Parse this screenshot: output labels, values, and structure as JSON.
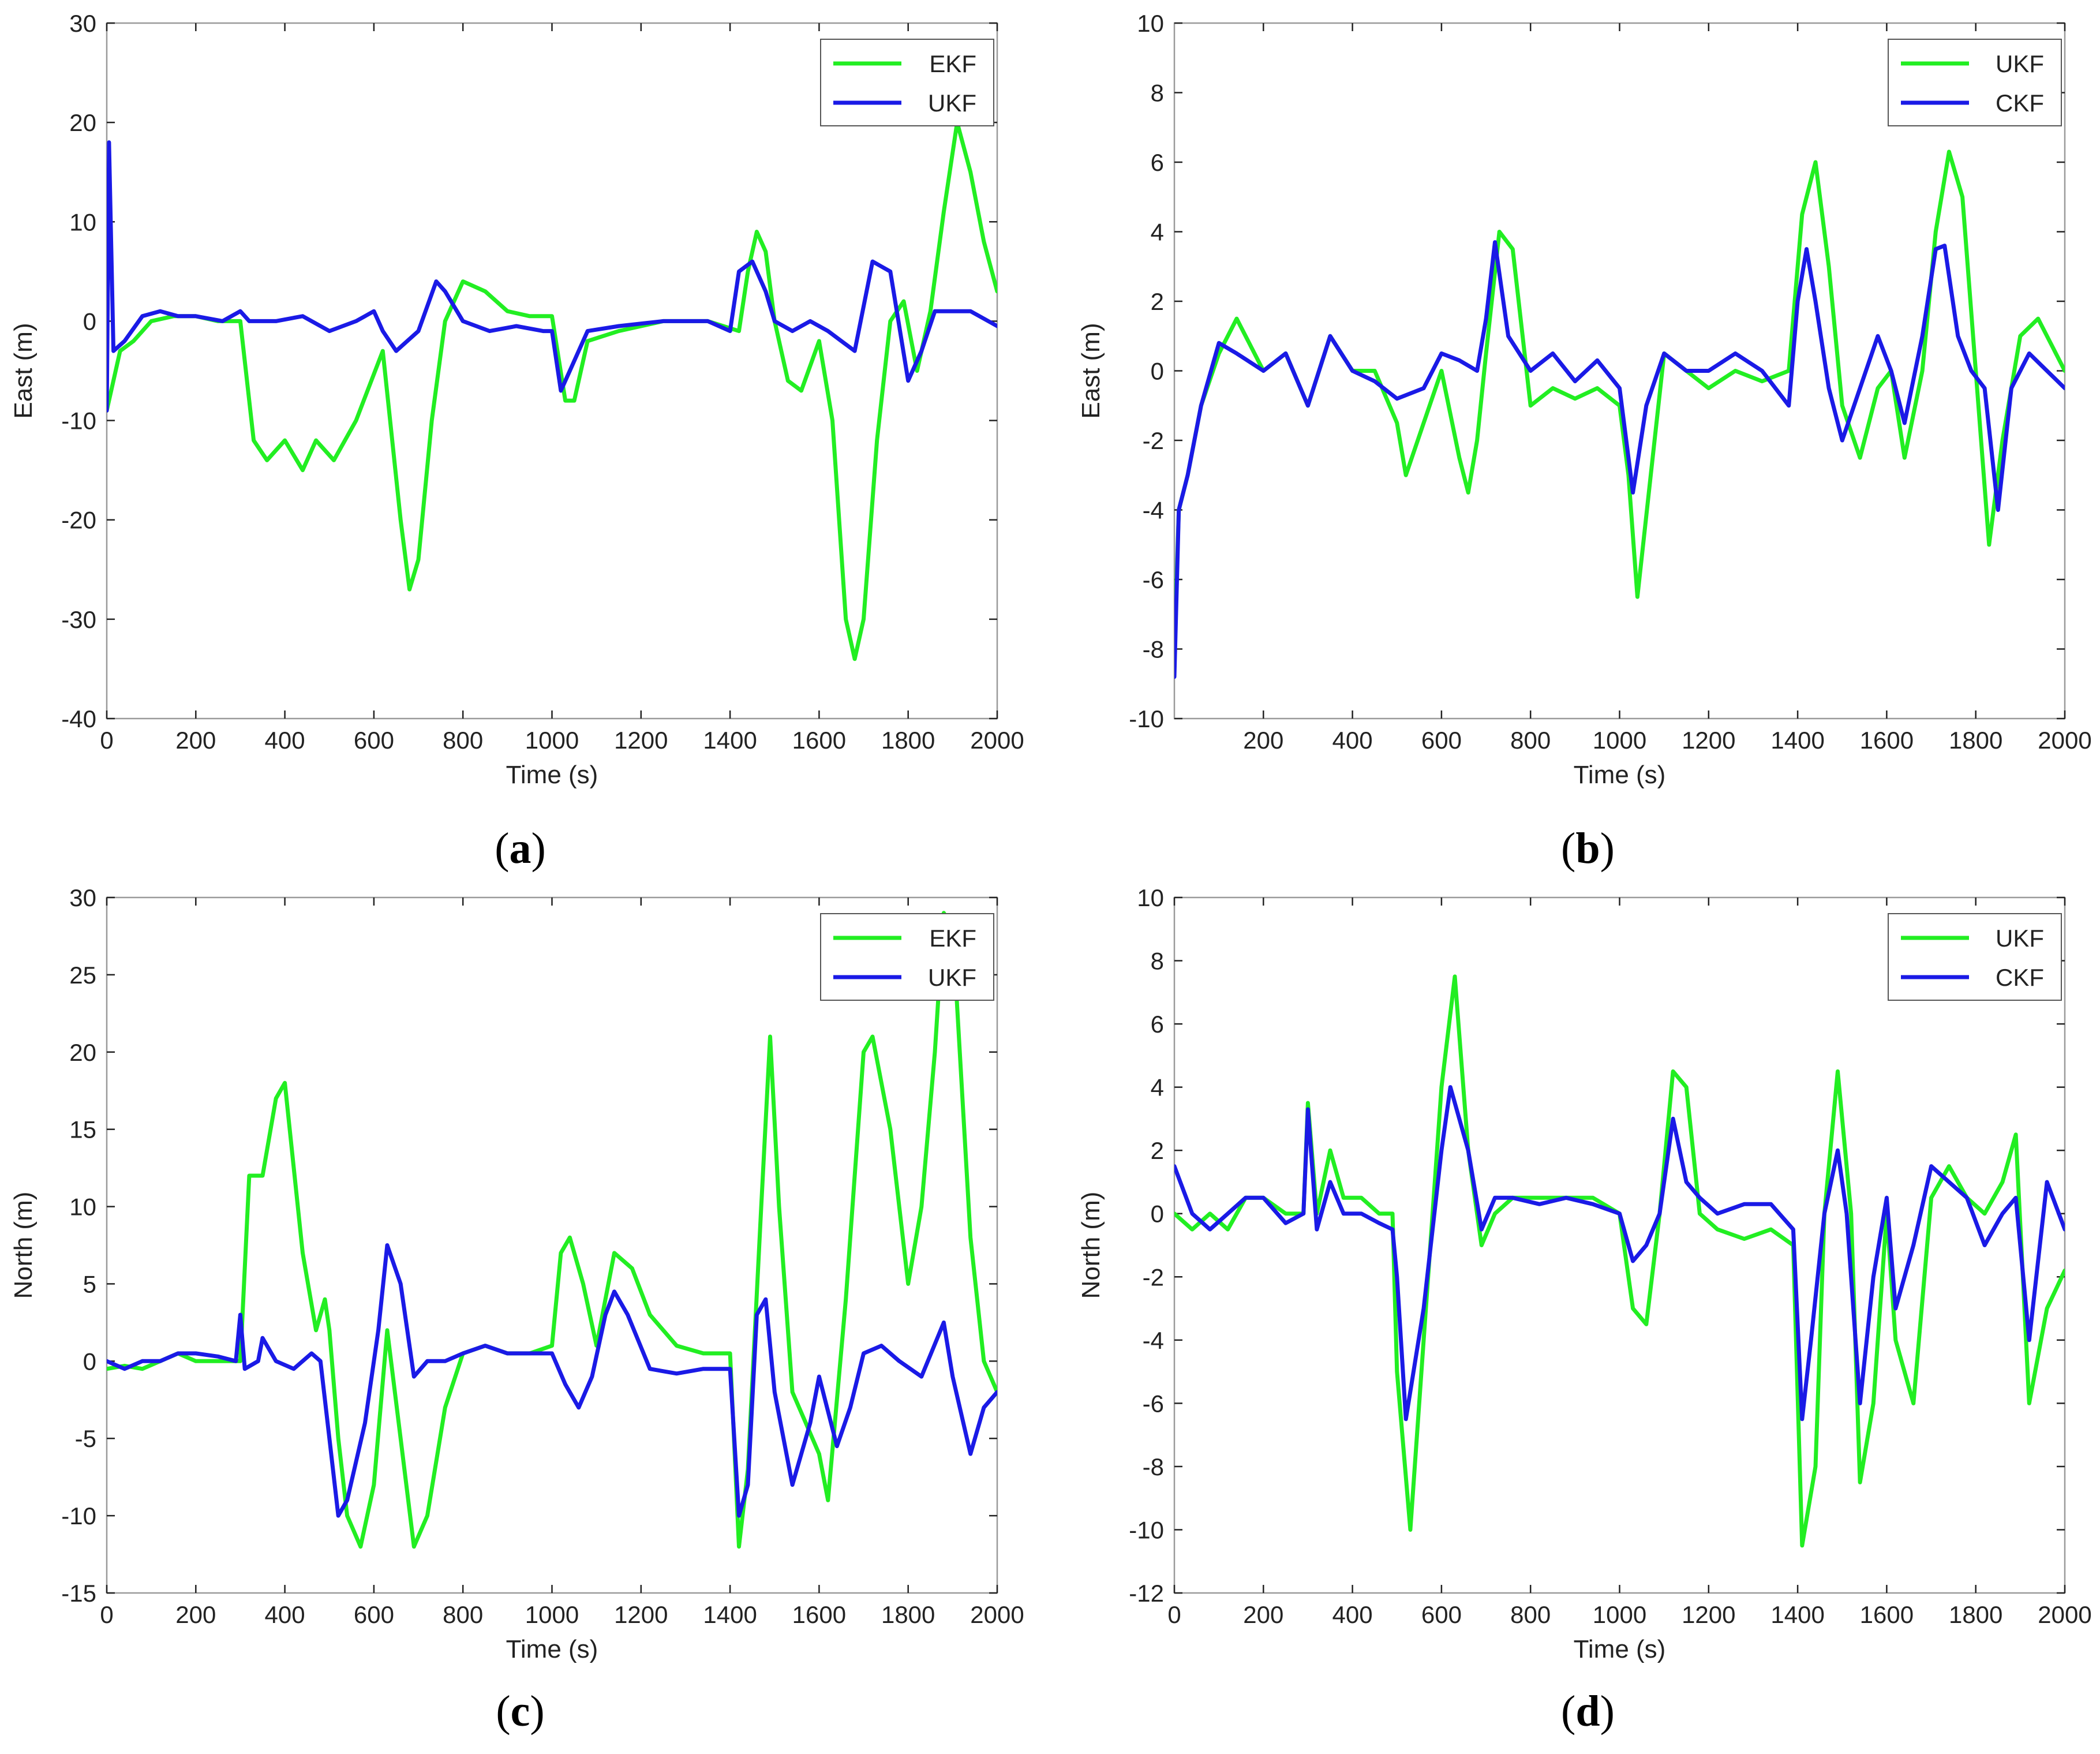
{
  "colors": {
    "green": "#22ee22",
    "blue": "#1a1ae6"
  },
  "chart_data": [
    {
      "id": "a",
      "type": "line",
      "caption": "a",
      "xlabel": "Time (s)",
      "ylabel": "East (m)",
      "xlim": [
        0,
        2000
      ],
      "ylim": [
        -40,
        30
      ],
      "xticks": [
        0,
        200,
        400,
        600,
        800,
        1000,
        1200,
        1400,
        1600,
        1800,
        2000
      ],
      "yticks": [
        -40,
        -30,
        -20,
        -10,
        0,
        10,
        20,
        30
      ],
      "series": [
        {
          "name": "EKF",
          "color": "green",
          "x": [
            0,
            10,
            30,
            60,
            100,
            150,
            200,
            250,
            300,
            330,
            360,
            400,
            440,
            470,
            510,
            560,
            620,
            660,
            680,
            700,
            730,
            760,
            800,
            850,
            900,
            950,
            1000,
            1030,
            1050,
            1080,
            1150,
            1250,
            1350,
            1420,
            1440,
            1460,
            1480,
            1500,
            1530,
            1560,
            1600,
            1630,
            1660,
            1680,
            1700,
            1730,
            1760,
            1790,
            1820,
            1850,
            1880,
            1910,
            1940,
            1970,
            2000
          ],
          "y": [
            -9,
            -7,
            -3,
            -2,
            0,
            0.5,
            0.5,
            0,
            0,
            -12,
            -14,
            -12,
            -15,
            -12,
            -14,
            -10,
            -3,
            -20,
            -27,
            -24,
            -10,
            0,
            4,
            3,
            1,
            0.5,
            0.5,
            -8,
            -8,
            -2,
            -1,
            0,
            0,
            -1,
            5,
            9,
            7,
            0,
            -6,
            -7,
            -2,
            -10,
            -30,
            -34,
            -30,
            -12,
            0,
            2,
            -5,
            1,
            11,
            20,
            15,
            8,
            3
          ]
        },
        {
          "name": "UKF",
          "color": "blue",
          "x": [
            0,
            5,
            15,
            40,
            80,
            120,
            160,
            200,
            260,
            300,
            320,
            380,
            440,
            500,
            560,
            600,
            620,
            650,
            700,
            740,
            760,
            800,
            860,
            920,
            980,
            1000,
            1020,
            1040,
            1080,
            1150,
            1250,
            1350,
            1400,
            1420,
            1450,
            1480,
            1500,
            1540,
            1580,
            1620,
            1650,
            1680,
            1720,
            1760,
            1800,
            1830,
            1860,
            1900,
            1940,
            2000
          ],
          "y": [
            -9,
            18,
            -3,
            -2,
            0.5,
            1,
            0.5,
            0.5,
            0,
            1,
            0,
            0,
            0.5,
            -1,
            0,
            1,
            -1,
            -3,
            -1,
            4,
            3,
            0,
            -1,
            -0.5,
            -1,
            -1,
            -7,
            -5,
            -1,
            -0.5,
            0,
            0,
            -1,
            5,
            6,
            3,
            0,
            -1,
            0,
            -1,
            -2,
            -3,
            6,
            5,
            -6,
            -3,
            1,
            1,
            1,
            -0.5
          ]
        }
      ],
      "legend": [
        "EKF",
        "UKF"
      ]
    },
    {
      "id": "b",
      "type": "line",
      "caption": "b",
      "xlabel": "Time (s)",
      "ylabel": "East (m)",
      "xlim": [
        0,
        2000
      ],
      "ylim": [
        -10,
        10
      ],
      "xticks": [
        200,
        400,
        600,
        800,
        1000,
        1200,
        1400,
        1600,
        1800,
        2000
      ],
      "yticks": [
        -10,
        -8,
        -6,
        -4,
        -2,
        0,
        2,
        4,
        6,
        8,
        10
      ],
      "series": [
        {
          "name": "UKF",
          "color": "green",
          "x": [
            0,
            10,
            30,
            60,
            100,
            140,
            200,
            250,
            300,
            350,
            400,
            450,
            500,
            520,
            560,
            600,
            640,
            660,
            680,
            700,
            730,
            760,
            800,
            850,
            900,
            950,
            1000,
            1020,
            1040,
            1070,
            1100,
            1150,
            1200,
            1260,
            1320,
            1380,
            1410,
            1440,
            1470,
            1500,
            1540,
            1580,
            1610,
            1640,
            1680,
            1710,
            1740,
            1770,
            1800,
            1830,
            1860,
            1900,
            1940,
            2000
          ],
          "y": [
            -8,
            -4,
            -3,
            -1,
            0.5,
            1.5,
            0,
            0.5,
            -1,
            1,
            0,
            0,
            -1.5,
            -3,
            -1.5,
            0,
            -2.5,
            -3.5,
            -2,
            0.5,
            4,
            3.5,
            -1,
            -0.5,
            -0.8,
            -0.5,
            -1,
            -3,
            -6.5,
            -3,
            0.5,
            0,
            -0.5,
            0,
            -0.3,
            0,
            4.5,
            6,
            3,
            -1,
            -2.5,
            -0.5,
            0,
            -2.5,
            0,
            4,
            6.3,
            5,
            0,
            -5,
            -2,
            1,
            1.5,
            0
          ]
        },
        {
          "name": "CKF",
          "color": "blue",
          "x": [
            0,
            10,
            30,
            60,
            100,
            140,
            200,
            250,
            300,
            350,
            400,
            450,
            500,
            560,
            600,
            640,
            680,
            700,
            720,
            750,
            800,
            850,
            900,
            950,
            1000,
            1030,
            1060,
            1100,
            1150,
            1200,
            1260,
            1320,
            1380,
            1400,
            1420,
            1440,
            1470,
            1500,
            1540,
            1580,
            1610,
            1640,
            1680,
            1710,
            1730,
            1760,
            1790,
            1820,
            1850,
            1880,
            1920,
            1960,
            2000
          ],
          "y": [
            -8.8,
            -4,
            -3,
            -1,
            0.8,
            0.5,
            0,
            0.5,
            -1,
            1,
            0,
            -0.3,
            -0.8,
            -0.5,
            0.5,
            0.3,
            0,
            1.5,
            3.7,
            1,
            0,
            0.5,
            -0.3,
            0.3,
            -0.5,
            -3.5,
            -1,
            0.5,
            0,
            0,
            0.5,
            0,
            -1,
            2,
            3.5,
            2,
            -0.5,
            -2,
            -0.5,
            1,
            0,
            -1.5,
            1,
            3.5,
            3.6,
            1,
            0,
            -0.5,
            -4,
            -0.5,
            0.5,
            0,
            -0.5
          ]
        }
      ],
      "legend": [
        "UKF",
        "CKF"
      ]
    },
    {
      "id": "c",
      "type": "line",
      "caption": "c",
      "xlabel": "Time (s)",
      "ylabel": "North (m)",
      "xlim": [
        0,
        2000
      ],
      "ylim": [
        -15,
        30
      ],
      "xticks": [
        0,
        200,
        400,
        600,
        800,
        1000,
        1200,
        1400,
        1600,
        1800,
        2000
      ],
      "yticks": [
        -15,
        -10,
        -5,
        0,
        5,
        10,
        15,
        20,
        25,
        30
      ],
      "series": [
        {
          "name": "EKF",
          "color": "green",
          "x": [
            0,
            40,
            80,
            120,
            160,
            200,
            250,
            300,
            320,
            350,
            380,
            400,
            440,
            470,
            490,
            500,
            520,
            540,
            570,
            600,
            630,
            660,
            690,
            720,
            760,
            800,
            850,
            900,
            950,
            1000,
            1020,
            1040,
            1070,
            1100,
            1140,
            1180,
            1220,
            1280,
            1340,
            1400,
            1420,
            1440,
            1470,
            1490,
            1510,
            1540,
            1570,
            1600,
            1620,
            1660,
            1700,
            1720,
            1760,
            1800,
            1830,
            1860,
            1880,
            1900,
            1940,
            1970,
            2000
          ],
          "y": [
            -0.5,
            -0.3,
            -0.5,
            0,
            0.5,
            0,
            0,
            0,
            12,
            12,
            17,
            18,
            7,
            2,
            4,
            2,
            -5,
            -10,
            -12,
            -8,
            2,
            -5,
            -12,
            -10,
            -3,
            0.5,
            1,
            0.5,
            0.5,
            1,
            7,
            8,
            5,
            1,
            7,
            6,
            3,
            1,
            0.5,
            0.5,
            -12,
            -7,
            10,
            21,
            10,
            -2,
            -4,
            -6,
            -9,
            4,
            20,
            21,
            15,
            5,
            10,
            20,
            29,
            28,
            8,
            0,
            -2
          ]
        },
        {
          "name": "UKF",
          "color": "blue",
          "x": [
            0,
            40,
            80,
            120,
            160,
            200,
            250,
            290,
            300,
            310,
            340,
            350,
            380,
            420,
            460,
            480,
            500,
            520,
            540,
            580,
            610,
            630,
            660,
            690,
            720,
            760,
            800,
            850,
            900,
            950,
            1000,
            1030,
            1060,
            1090,
            1120,
            1140,
            1170,
            1220,
            1280,
            1340,
            1400,
            1420,
            1440,
            1460,
            1480,
            1500,
            1540,
            1580,
            1600,
            1640,
            1670,
            1700,
            1740,
            1780,
            1830,
            1880,
            1900,
            1940,
            1970,
            2000
          ],
          "y": [
            0,
            -0.5,
            0,
            0,
            0.5,
            0.5,
            0.3,
            0,
            3,
            -0.5,
            0,
            1.5,
            0,
            -0.5,
            0.5,
            0,
            -5,
            -10,
            -9,
            -4,
            2,
            7.5,
            5,
            -1,
            0,
            0,
            0.5,
            1,
            0.5,
            0.5,
            0.5,
            -1.5,
            -3,
            -1,
            3,
            4.5,
            3,
            -0.5,
            -0.8,
            -0.5,
            -0.5,
            -10,
            -8,
            3,
            4,
            -2,
            -8,
            -4,
            -1,
            -5.5,
            -3,
            0.5,
            1,
            0,
            -1,
            2.5,
            -1,
            -6,
            -3,
            -2
          ]
        }
      ],
      "legend": [
        "EKF",
        "UKF"
      ]
    },
    {
      "id": "d",
      "type": "line",
      "caption": "d",
      "xlabel": "Time (s)",
      "ylabel": "North (m)",
      "xlim": [
        0,
        2000
      ],
      "ylim": [
        -12,
        10
      ],
      "xticks": [
        0,
        200,
        400,
        600,
        800,
        1000,
        1200,
        1400,
        1600,
        1800,
        2000
      ],
      "yticks": [
        -12,
        -10,
        -8,
        -6,
        -4,
        -2,
        0,
        2,
        4,
        6,
        8,
        10
      ],
      "series": [
        {
          "name": "UKF",
          "color": "green",
          "x": [
            0,
            40,
            80,
            120,
            160,
            200,
            250,
            290,
            300,
            320,
            350,
            380,
            420,
            460,
            490,
            500,
            530,
            560,
            600,
            630,
            660,
            690,
            720,
            760,
            820,
            880,
            940,
            1000,
            1030,
            1060,
            1090,
            1120,
            1150,
            1180,
            1220,
            1280,
            1340,
            1390,
            1410,
            1440,
            1460,
            1490,
            1520,
            1540,
            1570,
            1600,
            1620,
            1660,
            1700,
            1740,
            1780,
            1820,
            1860,
            1890,
            1920,
            1960,
            2000
          ],
          "y": [
            0,
            -0.5,
            0,
            -0.5,
            0.5,
            0.5,
            0,
            0,
            3.5,
            0,
            2,
            0.5,
            0.5,
            0,
            0,
            -5,
            -10,
            -4,
            4,
            7.5,
            2,
            -1,
            0,
            0.5,
            0.5,
            0.5,
            0.5,
            0,
            -3,
            -3.5,
            0,
            4.5,
            4,
            0,
            -0.5,
            -0.8,
            -0.5,
            -1,
            -10.5,
            -8,
            0,
            4.5,
            0,
            -8.5,
            -6,
            0,
            -4,
            -6,
            0.5,
            1.5,
            0.5,
            0,
            1,
            2.5,
            -6,
            -3,
            -1.8
          ]
        },
        {
          "name": "CKF",
          "color": "blue",
          "x": [
            0,
            40,
            80,
            120,
            160,
            200,
            250,
            290,
            300,
            320,
            350,
            380,
            420,
            460,
            490,
            500,
            520,
            560,
            600,
            620,
            660,
            690,
            720,
            760,
            820,
            880,
            940,
            1000,
            1030,
            1060,
            1090,
            1120,
            1150,
            1180,
            1220,
            1280,
            1340,
            1390,
            1410,
            1430,
            1460,
            1490,
            1510,
            1540,
            1570,
            1600,
            1620,
            1660,
            1700,
            1740,
            1780,
            1820,
            1860,
            1890,
            1920,
            1960,
            2000
          ],
          "y": [
            1.5,
            0,
            -0.5,
            0,
            0.5,
            0.5,
            -0.3,
            0,
            3.3,
            -0.5,
            1,
            0,
            0,
            -0.3,
            -0.5,
            -2,
            -6.5,
            -3,
            2,
            4,
            2,
            -0.5,
            0.5,
            0.5,
            0.3,
            0.5,
            0.3,
            0,
            -1.5,
            -1,
            0,
            3,
            1,
            0.5,
            0,
            0.3,
            0.3,
            -0.5,
            -6.5,
            -4,
            0,
            2,
            0,
            -6,
            -2,
            0.5,
            -3,
            -1,
            1.5,
            1,
            0.5,
            -1,
            0,
            0.5,
            -4,
            1,
            -0.5
          ]
        }
      ],
      "legend": [
        "UKF",
        "CKF"
      ]
    }
  ]
}
